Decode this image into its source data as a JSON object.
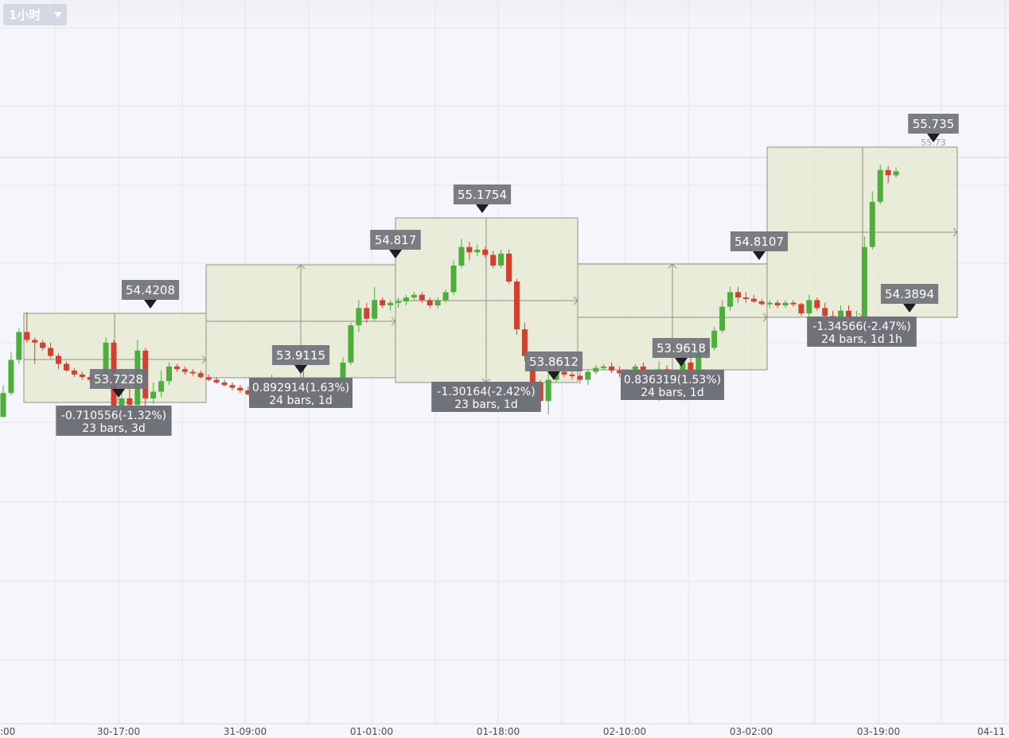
{
  "toolbar": {
    "interval_label": "1小时",
    "interval_arrow_icon": "chevron-down-icon"
  },
  "colors": {
    "background": "#f5f6fb",
    "grid": "#e1e4ec",
    "up": "#4caf3a",
    "down": "#d2412f",
    "box_fill": "#e8ead3",
    "box_stroke": "#8f9184",
    "label_bg": "#6f7379",
    "label_text": "#ffffff",
    "marker": "#1c1e24"
  },
  "chart_data": {
    "type": "candlestick",
    "ylim": [
      51.53,
      56.98
    ],
    "grid": true,
    "x_tick_labels": [
      ":00",
      "30-17:00",
      "31-09:00",
      "01-01:00",
      "01-18:00",
      "02-10:00",
      "03-02:00",
      "03-19:00",
      "04-11"
    ],
    "last_price": "55.73",
    "price_labels": [
      "54.4208",
      "53.7228",
      "53.9115",
      "54.817",
      "55.1754",
      "53.8612",
      "53.9618",
      "54.8107",
      "54.3894",
      "55.735"
    ],
    "measurements": [
      {
        "change": "-0.710556(-1.32%)",
        "span": "23 bars, 3d",
        "direction": "down"
      },
      {
        "change": "0.892914(1.63%)",
        "span": "24 bars, 1d",
        "direction": "up"
      },
      {
        "change": "-1.30164(-2.42%)",
        "span": "23 bars, 1d",
        "direction": "down"
      },
      {
        "change": "0.836319(1.53%)",
        "span": "24 bars, 1d",
        "direction": "up"
      },
      {
        "change": "-1.34566(-2.47%)",
        "span": "24 bars, 1d 1h",
        "direction": "down"
      }
    ],
    "candles": [
      [
        53.84,
        54.08,
        53.84,
        54.02
      ],
      [
        54.02,
        54.33,
        54.0,
        54.27
      ],
      [
        54.27,
        54.51,
        54.24,
        54.48
      ],
      [
        54.48,
        54.63,
        54.4,
        54.42
      ],
      [
        54.42,
        54.44,
        54.24,
        54.4
      ],
      [
        54.4,
        54.42,
        54.34,
        54.36
      ],
      [
        54.36,
        54.4,
        54.28,
        54.3
      ],
      [
        54.3,
        54.32,
        54.2,
        54.24
      ],
      [
        54.24,
        54.26,
        54.18,
        54.19
      ],
      [
        54.19,
        54.21,
        54.14,
        54.16
      ],
      [
        54.16,
        54.18,
        54.12,
        54.14
      ],
      [
        54.14,
        54.16,
        54.1,
        54.12
      ],
      [
        54.12,
        54.16,
        54.11,
        54.15
      ],
      [
        54.15,
        54.44,
        54.13,
        54.4
      ],
      [
        54.4,
        54.42,
        53.76,
        53.84
      ],
      [
        53.84,
        54.04,
        53.72,
        53.98
      ],
      [
        53.98,
        54.06,
        53.86,
        53.93
      ],
      [
        53.93,
        54.42,
        53.9,
        54.34
      ],
      [
        54.34,
        54.36,
        53.92,
        53.98
      ],
      [
        53.98,
        54.1,
        53.94,
        54.03
      ],
      [
        54.03,
        54.19,
        53.99,
        54.11
      ],
      [
        54.11,
        54.25,
        54.08,
        54.22
      ],
      [
        54.22,
        54.24,
        54.18,
        54.2
      ],
      [
        54.2,
        54.22,
        54.16,
        54.18
      ],
      [
        54.18,
        54.2,
        54.15,
        54.17
      ],
      [
        54.17,
        54.19,
        54.13,
        54.14
      ],
      [
        54.14,
        54.16,
        54.11,
        54.12
      ],
      [
        54.12,
        54.14,
        54.09,
        54.1
      ],
      [
        54.1,
        54.12,
        54.07,
        54.08
      ],
      [
        54.08,
        54.1,
        54.04,
        54.06
      ],
      [
        54.06,
        54.08,
        54.02,
        54.04
      ],
      [
        54.04,
        54.07,
        54.0,
        54.01
      ],
      [
        54.01,
        54.03,
        53.96,
        53.98
      ],
      [
        53.98,
        54.01,
        53.93,
        53.95
      ],
      [
        53.95,
        54.16,
        53.92,
        54.12
      ],
      [
        54.12,
        54.14,
        54.08,
        54.1
      ],
      [
        54.1,
        54.12,
        54.05,
        54.08
      ],
      [
        54.08,
        54.1,
        54.02,
        54.05
      ],
      [
        54.05,
        54.21,
        53.96,
        53.99
      ],
      [
        53.99,
        54.03,
        53.93,
        53.96
      ],
      [
        53.96,
        54.09,
        53.92,
        54.02
      ],
      [
        54.02,
        54.08,
        53.98,
        54.06
      ],
      [
        54.06,
        54.12,
        54.02,
        54.09
      ],
      [
        54.09,
        54.29,
        54.06,
        54.25
      ],
      [
        54.25,
        54.55,
        54.23,
        54.53
      ],
      [
        54.53,
        54.72,
        54.48,
        54.66
      ],
      [
        54.66,
        54.7,
        54.55,
        54.58
      ],
      [
        54.58,
        54.82,
        54.56,
        54.72
      ],
      [
        54.72,
        54.74,
        54.66,
        54.68
      ],
      [
        54.68,
        54.72,
        54.64,
        54.7
      ],
      [
        54.7,
        54.74,
        54.66,
        54.71
      ],
      [
        54.71,
        54.76,
        54.68,
        54.74
      ],
      [
        54.74,
        54.78,
        54.72,
        54.76
      ],
      [
        54.76,
        54.78,
        54.7,
        54.72
      ],
      [
        54.72,
        54.74,
        54.66,
        54.68
      ],
      [
        54.68,
        54.74,
        54.66,
        54.72
      ],
      [
        54.72,
        54.8,
        54.7,
        54.78
      ],
      [
        54.78,
        55.02,
        54.76,
        54.98
      ],
      [
        54.98,
        55.18,
        54.96,
        55.12
      ],
      [
        55.12,
        55.16,
        55.02,
        55.08
      ],
      [
        55.08,
        55.14,
        55.05,
        55.1
      ],
      [
        55.1,
        55.12,
        55.04,
        55.06
      ],
      [
        55.06,
        55.09,
        54.96,
        54.98
      ],
      [
        54.98,
        55.1,
        54.96,
        55.07
      ],
      [
        55.07,
        55.1,
        54.84,
        54.86
      ],
      [
        54.86,
        54.88,
        54.46,
        54.5
      ],
      [
        54.5,
        54.55,
        54.26,
        54.3
      ],
      [
        54.3,
        54.33,
        54.04,
        54.1
      ],
      [
        54.1,
        54.12,
        53.9,
        53.96
      ],
      [
        53.96,
        54.18,
        53.86,
        54.12
      ],
      [
        54.12,
        54.22,
        54.1,
        54.18
      ],
      [
        54.18,
        54.22,
        54.14,
        54.16
      ],
      [
        54.16,
        54.2,
        54.12,
        54.15
      ],
      [
        54.15,
        54.18,
        54.09,
        54.12
      ],
      [
        54.12,
        54.2,
        54.08,
        54.18
      ],
      [
        54.18,
        54.23,
        54.16,
        54.21
      ],
      [
        54.21,
        54.24,
        54.19,
        54.22
      ],
      [
        54.22,
        54.25,
        54.17,
        54.19
      ],
      [
        54.19,
        54.22,
        54.14,
        54.17
      ],
      [
        54.17,
        54.2,
        54.12,
        54.14
      ],
      [
        54.14,
        54.24,
        54.11,
        54.22
      ],
      [
        54.22,
        54.25,
        54.08,
        54.11
      ],
      [
        54.11,
        54.14,
        53.98,
        54.02
      ],
      [
        54.02,
        54.26,
        53.96,
        54.2
      ],
      [
        54.2,
        54.23,
        54.02,
        54.05
      ],
      [
        54.05,
        54.14,
        54.01,
        54.08
      ],
      [
        54.08,
        54.28,
        54.05,
        54.25
      ],
      [
        54.25,
        54.3,
        54.12,
        54.15
      ],
      [
        54.15,
        54.36,
        54.12,
        54.32
      ],
      [
        54.32,
        54.41,
        54.28,
        54.36
      ],
      [
        54.36,
        54.52,
        54.34,
        54.49
      ],
      [
        54.49,
        54.72,
        54.47,
        54.67
      ],
      [
        54.67,
        54.82,
        54.64,
        54.78
      ],
      [
        54.78,
        54.82,
        54.7,
        54.74
      ],
      [
        54.74,
        54.78,
        54.7,
        54.73
      ],
      [
        54.73,
        54.76,
        54.7,
        54.71
      ],
      [
        54.71,
        54.73,
        54.68,
        54.69
      ],
      [
        54.69,
        54.72,
        54.66,
        54.7
      ],
      [
        54.7,
        54.72,
        54.66,
        54.68
      ],
      [
        54.68,
        54.72,
        54.66,
        54.7
      ],
      [
        54.7,
        54.72,
        54.67,
        54.69
      ],
      [
        54.69,
        54.7,
        54.6,
        54.62
      ],
      [
        54.62,
        54.76,
        54.58,
        54.72
      ],
      [
        54.72,
        54.74,
        54.64,
        54.66
      ],
      [
        54.66,
        54.7,
        54.56,
        54.6
      ],
      [
        54.6,
        54.64,
        54.48,
        54.52
      ],
      [
        54.52,
        54.68,
        54.5,
        54.64
      ],
      [
        54.64,
        54.68,
        54.46,
        54.52
      ],
      [
        54.52,
        54.64,
        54.4,
        54.58
      ],
      [
        54.58,
        55.2,
        54.56,
        55.12
      ],
      [
        55.12,
        55.54,
        55.1,
        55.46
      ],
      [
        55.46,
        55.74,
        55.44,
        55.7
      ],
      [
        55.7,
        55.73,
        55.6,
        55.66
      ],
      [
        55.66,
        55.72,
        55.64,
        55.69
      ]
    ]
  }
}
